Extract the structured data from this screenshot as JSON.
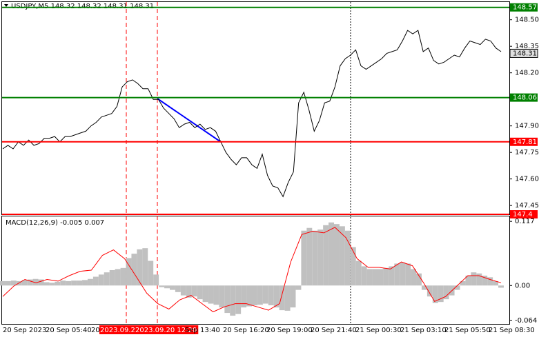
{
  "chart_data": [
    {
      "type": "line",
      "title": "USDJPY,M5  148.32 148.32 148.31 148.31",
      "color": "#000000",
      "values": [
        147.77,
        147.79,
        147.77,
        147.81,
        147.79,
        147.82,
        147.79,
        147.8,
        147.83,
        147.83,
        147.84,
        147.81,
        147.84,
        147.84,
        147.85,
        147.86,
        147.87,
        147.9,
        147.92,
        147.95,
        147.96,
        147.97,
        148.01,
        148.12,
        148.15,
        148.16,
        148.14,
        148.11,
        148.11,
        148.05,
        148.05,
        148.0,
        147.97,
        147.94,
        147.89,
        147.91,
        147.92,
        147.89,
        147.91,
        147.88,
        147.89,
        147.87,
        147.81,
        147.75,
        147.71,
        147.68,
        147.72,
        147.72,
        147.68,
        147.66,
        147.74,
        147.62,
        147.56,
        147.55,
        147.5,
        147.58,
        147.64,
        148.03,
        148.09,
        147.99,
        147.87,
        147.93,
        148.03,
        148.04,
        148.12,
        148.24,
        148.28,
        148.3,
        148.33,
        148.24,
        148.22,
        148.24,
        148.26,
        148.28,
        148.31,
        148.32,
        148.33,
        148.38,
        148.44,
        148.42,
        148.44,
        148.32,
        148.34,
        148.27,
        148.25,
        148.26,
        148.28,
        148.3,
        148.29,
        148.34,
        148.38,
        148.37,
        148.36,
        148.39,
        148.38,
        148.34,
        148.32
      ],
      "ylim": [
        147.4,
        148.6
      ],
      "yticks": [
        {
          "value": 148.5,
          "label": "148.50"
        },
        148.35,
        {
          "value": 148.2,
          "label": "148.20"
        },
        {
          "value": 147.9,
          "label": "147.90"
        },
        147.75,
        {
          "value": 147.6,
          "label": "147.60"
        },
        147.45
      ],
      "levels": [
        {
          "value": 148.57,
          "color": "#008000"
        },
        {
          "value": 148.06,
          "color": "#008000"
        },
        {
          "value": 147.81,
          "color": "#ff0000"
        },
        {
          "value": 147.4,
          "color": "#ff0000"
        }
      ],
      "current_price": 148.31
    },
    {
      "type": "macd",
      "title": "MACD(12,26,9) -0.005 0.007",
      "histogram": {
        "color": "#c0c0c0",
        "values": [
          0.008,
          0.008,
          0.009,
          0.008,
          0.01,
          0.011,
          0.012,
          0.011,
          0.006,
          0.005,
          0.007,
          0.009,
          0.008,
          0.009,
          0.009,
          0.01,
          0.012,
          0.016,
          0.02,
          0.024,
          0.028,
          0.03,
          0.032,
          0.05,
          0.058,
          0.066,
          0.068,
          0.045,
          0.02,
          -0.003,
          -0.005,
          -0.008,
          -0.012,
          -0.018,
          -0.022,
          -0.02,
          -0.025,
          -0.03,
          -0.033,
          -0.035,
          -0.04,
          -0.05,
          -0.055,
          -0.052,
          -0.04,
          -0.038,
          -0.036,
          -0.035,
          -0.033,
          -0.036,
          -0.04,
          -0.045,
          -0.046,
          -0.04,
          -0.008,
          0.1,
          0.105,
          0.1,
          0.102,
          0.11,
          0.115,
          0.112,
          0.108,
          0.1,
          0.07,
          0.045,
          0.035,
          0.03,
          0.03,
          0.03,
          0.032,
          0.035,
          0.04,
          0.042,
          0.04,
          0.03,
          0.022,
          -0.008,
          -0.02,
          -0.032,
          -0.03,
          -0.025,
          -0.018,
          -0.008,
          0.008,
          0.018,
          0.024,
          0.022,
          0.018,
          0.015,
          0.008,
          -0.004
        ]
      },
      "signal": {
        "color": "#ff0000",
        "values": [
          -0.02,
          -0.001,
          0.011,
          0.005,
          0.011,
          0.008,
          0.018,
          0.026,
          0.028,
          0.055,
          0.065,
          0.049,
          0.018,
          -0.014,
          -0.033,
          -0.043,
          -0.026,
          -0.018,
          -0.033,
          -0.048,
          -0.039,
          -0.033,
          -0.033,
          -0.039,
          -0.045,
          -0.033,
          0.043,
          0.093,
          0.099,
          0.096,
          0.106,
          0.087,
          0.049,
          0.033,
          0.033,
          0.03,
          0.043,
          0.036,
          0.005,
          -0.029,
          -0.02,
          -0.001,
          0.018,
          0.018,
          0.011,
          0.005
        ]
      },
      "ylim": [
        -0.07,
        0.126
      ],
      "yticks": [
        0.117,
        {
          "value": 0,
          "label": "0.00"
        },
        -0.064
      ]
    }
  ],
  "time_axis": {
    "labels": [
      "20 Sep 2023",
      "20 Sep 05:40",
      "20",
      "2023.09.2",
      "2023.09.20 12:20",
      "Sep 13:40",
      "20 Sep 16:20",
      "20 Sep 19:00",
      "20 Sep 21:40",
      "21 Sep 00:30",
      "21 Sep 03:10",
      "21 Sep 05:50",
      "21 Sep 08:30"
    ],
    "highlighted": [
      3,
      4
    ]
  }
}
